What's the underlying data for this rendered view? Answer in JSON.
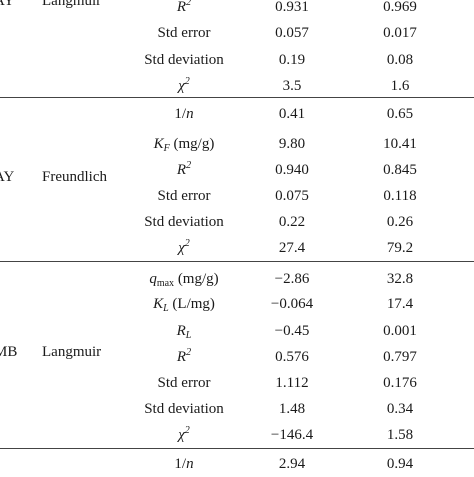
{
  "sections": [
    {
      "dye": "AY",
      "model": "Langmuir",
      "rows": [
        {
          "param": "R2",
          "v1": "0.931",
          "v2": "0.969"
        },
        {
          "param": "Std error",
          "v1": "0.057",
          "v2": "0.017"
        },
        {
          "param": "Std deviation",
          "v1": "0.19",
          "v2": "0.08"
        },
        {
          "param": "χ2",
          "v1": "3.5",
          "v2": "1.6"
        }
      ]
    },
    {
      "dye": "AY",
      "model": "Freundlich",
      "rows": [
        {
          "param": "1/n",
          "v1": "0.41",
          "v2": "0.65"
        },
        {
          "param": "KF (mg/g)",
          "v1": "9.80",
          "v2": "10.41"
        },
        {
          "param": "R2",
          "v1": "0.940",
          "v2": "0.845"
        },
        {
          "param": "Std error",
          "v1": "0.075",
          "v2": "0.118"
        },
        {
          "param": "Std deviation",
          "v1": "0.22",
          "v2": "0.26"
        },
        {
          "param": "χ2",
          "v1": "27.4",
          "v2": "79.2"
        }
      ]
    },
    {
      "dye": "MB",
      "model": "Langmuir",
      "rows": [
        {
          "param": "qmax (mg/g)",
          "v1": "−2.86",
          "v2": "32.8"
        },
        {
          "param": "KL (L/mg)",
          "v1": "−0.064",
          "v2": "17.4"
        },
        {
          "param": "RL",
          "v1": "−0.45",
          "v2": "0.001"
        },
        {
          "param": "R2",
          "v1": "0.576",
          "v2": "0.797"
        },
        {
          "param": "Std error",
          "v1": "1.112",
          "v2": "0.176"
        },
        {
          "param": "Std deviation",
          "v1": "1.48",
          "v2": "0.34"
        },
        {
          "param": "χ2",
          "v1": "−146.4",
          "v2": "1.58"
        }
      ]
    },
    {
      "rows": [
        {
          "param": "1/n",
          "v1": "2.94",
          "v2": "0.94"
        }
      ]
    }
  ]
}
